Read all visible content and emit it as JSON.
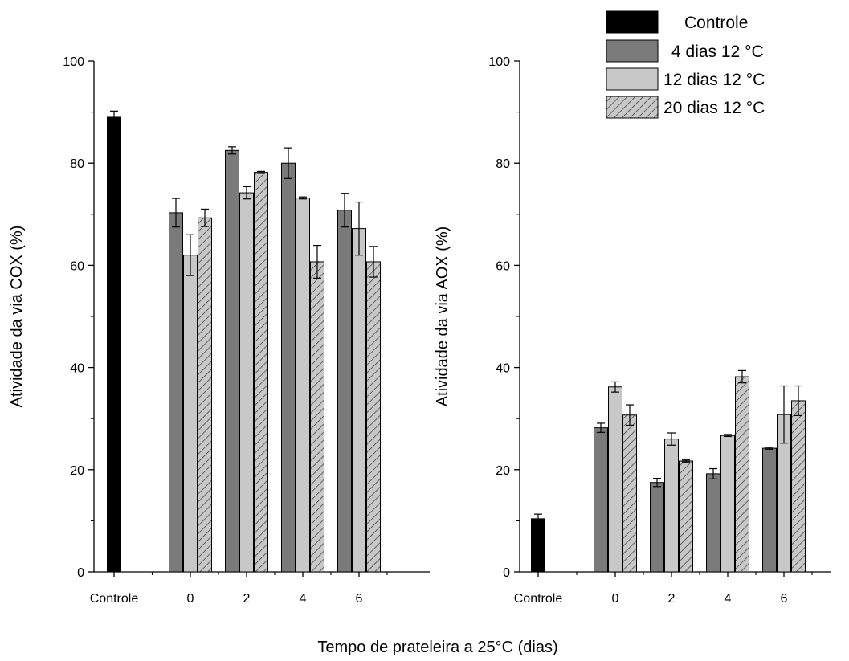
{
  "chart_data": [
    {
      "type": "bar",
      "ylabel": "Atividade da via COX (%)",
      "ylim": [
        0,
        100
      ],
      "yticks": [
        0,
        20,
        40,
        60,
        80,
        100
      ],
      "xtick_labels": [
        "Controle",
        "0",
        "2",
        "4",
        "6"
      ],
      "control": {
        "name": "Controle",
        "value": 89.0,
        "error": 1.2
      },
      "categories": [
        "0",
        "2",
        "4",
        "6"
      ],
      "series": [
        {
          "name": "4 dias 12 °C",
          "values": [
            70.3,
            82.5,
            80.0,
            70.8
          ],
          "errors": [
            2.8,
            0.7,
            3.0,
            3.3
          ]
        },
        {
          "name": "12 dias 12 °C",
          "values": [
            62.0,
            74.2,
            73.2,
            67.2
          ],
          "errors": [
            4.0,
            1.2,
            0.2,
            5.2
          ]
        },
        {
          "name": "20 dias 12 °C",
          "values": [
            69.3,
            78.2,
            60.7,
            60.7
          ],
          "errors": [
            1.7,
            0.2,
            3.2,
            3.0
          ]
        }
      ],
      "grid": false
    },
    {
      "type": "bar",
      "ylabel": "Atividade da via AOX (%)",
      "ylim": [
        0,
        100
      ],
      "yticks": [
        0,
        20,
        40,
        60,
        80,
        100
      ],
      "xtick_labels": [
        "Controle",
        "0",
        "2",
        "4",
        "6"
      ],
      "control": {
        "name": "Controle",
        "value": 10.4,
        "error": 0.9
      },
      "categories": [
        "0",
        "2",
        "4",
        "6"
      ],
      "series": [
        {
          "name": "4 dias 12 °C",
          "values": [
            28.2,
            17.5,
            19.2,
            24.2
          ],
          "errors": [
            0.9,
            0.8,
            1.0,
            0.2
          ]
        },
        {
          "name": "12 dias 12 °C",
          "values": [
            36.2,
            26.0,
            26.7,
            30.8
          ],
          "errors": [
            1.0,
            1.2,
            0.2,
            5.6
          ]
        },
        {
          "name": "20 dias 12 °C",
          "values": [
            30.7,
            21.7,
            38.2,
            33.5
          ],
          "errors": [
            2.0,
            0.2,
            1.2,
            2.9
          ]
        }
      ],
      "grid": false
    }
  ],
  "shared_xlabel": "Tempo de prateleira a 25°C (dias)",
  "legend": {
    "position": "top-right",
    "entries": [
      "Controle",
      "4 dias 12 °C",
      "12  dias 12 °C",
      "20  dias 12 °C"
    ]
  },
  "colors": {
    "control": "#000000",
    "s4": "#7a7a7a",
    "s12": "#c8c8c8",
    "s20": "#c8c8c8",
    "axis": "#000000"
  }
}
